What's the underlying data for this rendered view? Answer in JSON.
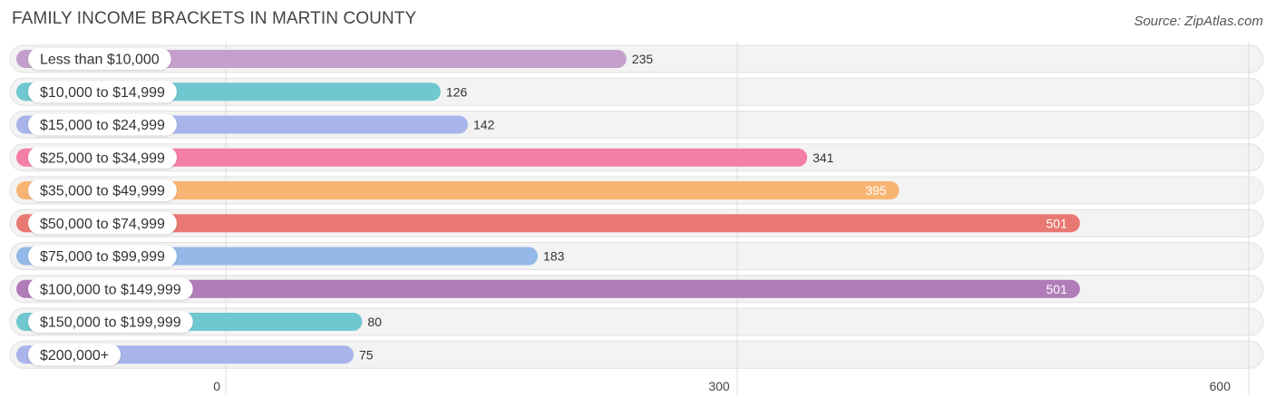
{
  "chart_data": {
    "type": "bar",
    "orientation": "horizontal",
    "title": "FAMILY INCOME BRACKETS IN MARTIN COUNTY",
    "source": "Source: ZipAtlas.com",
    "categories": [
      "Less than $10,000",
      "$10,000 to $14,999",
      "$15,000 to $24,999",
      "$25,000 to $34,999",
      "$35,000 to $49,999",
      "$50,000 to $74,999",
      "$75,000 to $99,999",
      "$100,000 to $149,999",
      "$150,000 to $199,999",
      "$200,000+"
    ],
    "values": [
      235,
      126,
      142,
      341,
      395,
      501,
      183,
      501,
      80,
      75
    ],
    "value_labels": [
      "235",
      "126",
      "142",
      "341",
      "395",
      "501",
      "183",
      "501",
      "80",
      "75"
    ],
    "colors": [
      "#c49fcb",
      "#6fc8cf",
      "#a9b4ea",
      "#f47fa6",
      "#f8b473",
      "#ea7872",
      "#94b9e8",
      "#b07db8",
      "#6fc8cf",
      "#a9b4ea"
    ],
    "xlim": [
      0,
      600
    ],
    "xticks": [
      "0",
      "300",
      "600"
    ],
    "grid": true
  }
}
